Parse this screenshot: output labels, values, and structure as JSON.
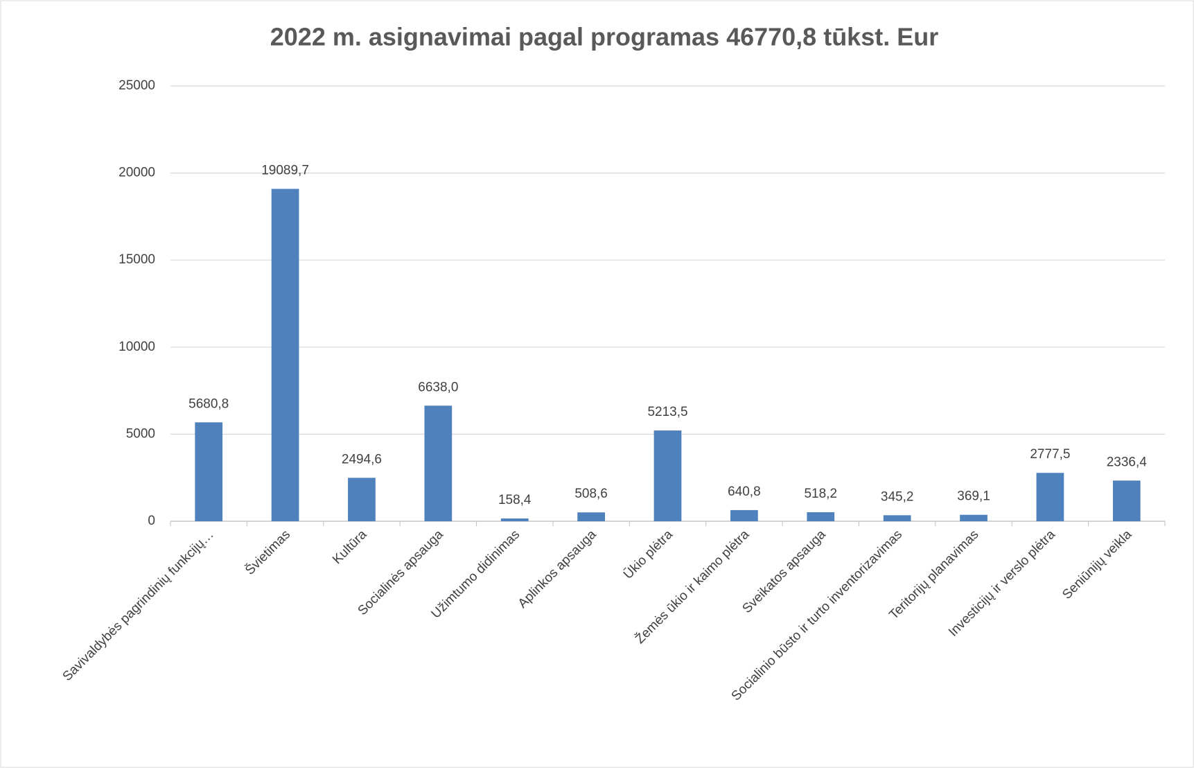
{
  "chart_data": {
    "type": "bar",
    "title": "2022 m. asignavimai pagal programas 46770,8 tūkst. Eur",
    "categories": [
      "Savivaldybės pagrindinių funkcijų…",
      "Švietimas",
      "Kultūra",
      "Socialinės apsauga",
      "Užimtumo didinimas",
      "Aplinkos apsauga",
      "Ūkio plėtra",
      "Žemės ūkio ir kaimo plėtra",
      "Sveikatos apsauga",
      "Socialinio būsto ir turto inventorizavimas",
      "Teritorijų planavimas",
      "Investicijų ir verslo plėtra",
      "Seniūnijų veikla"
    ],
    "values": [
      5680.8,
      19089.7,
      2494.6,
      6638.0,
      158.4,
      508.6,
      5213.5,
      640.8,
      518.2,
      345.2,
      369.1,
      2777.5,
      2336.4
    ],
    "value_labels": [
      "5680,8",
      "19089,7",
      "2494,6",
      "6638,0",
      "158,4",
      "508,6",
      "5213,5",
      "640,8",
      "518,2",
      "345,2",
      "369,1",
      "2777,5",
      "2336,4"
    ],
    "color": "#4f81bd",
    "ylim": [
      0,
      25000
    ],
    "yticks": [
      0,
      5000,
      10000,
      15000,
      20000,
      25000
    ],
    "grid": true
  }
}
